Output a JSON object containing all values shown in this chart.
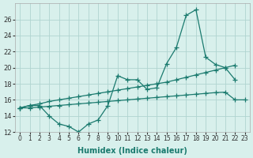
{
  "xlabel": "Humidex (Indice chaleur)",
  "x_values": [
    0,
    1,
    2,
    3,
    4,
    5,
    6,
    7,
    8,
    9,
    10,
    11,
    12,
    13,
    14,
    15,
    16,
    17,
    18,
    19,
    20,
    21,
    22,
    23
  ],
  "line1_y": [
    15,
    15.3,
    15.3,
    14,
    13,
    12.7,
    12,
    13,
    13.5,
    15.3,
    19,
    18.5,
    18.5,
    17.3,
    17.5,
    20.5,
    22.5,
    26.5,
    27.2,
    21.3,
    20.4,
    20,
    18.5,
    null
  ],
  "line2_y": [
    15,
    15.3,
    15.5,
    15.8,
    16.0,
    16.2,
    16.4,
    16.6,
    16.8,
    17.0,
    17.2,
    17.4,
    17.6,
    17.8,
    18.0,
    18.2,
    18.5,
    18.8,
    19.1,
    19.4,
    19.7,
    20.0,
    20.3,
    null
  ],
  "line3_y": [
    15,
    15.0,
    15.1,
    15.2,
    15.3,
    15.4,
    15.5,
    15.6,
    15.7,
    15.8,
    15.9,
    16.0,
    16.1,
    16.2,
    16.3,
    16.4,
    16.5,
    16.6,
    16.7,
    16.8,
    16.9,
    16.95,
    16,
    16
  ],
  "line_color": "#1a7a6e",
  "bg_color": "#d8f0ec",
  "grid_color": "#b0d4d0",
  "ylim": [
    12,
    28
  ],
  "xlim": [
    -0.5,
    23.5
  ],
  "yticks": [
    12,
    14,
    16,
    18,
    20,
    22,
    24,
    26
  ],
  "xtick_labels": [
    "0",
    "1",
    "2",
    "3",
    "4",
    "5",
    "6",
    "7",
    "8",
    "9",
    "10",
    "11",
    "12",
    "13",
    "14",
    "15",
    "16",
    "17",
    "18",
    "19",
    "20",
    "21",
    "22",
    "23"
  ]
}
